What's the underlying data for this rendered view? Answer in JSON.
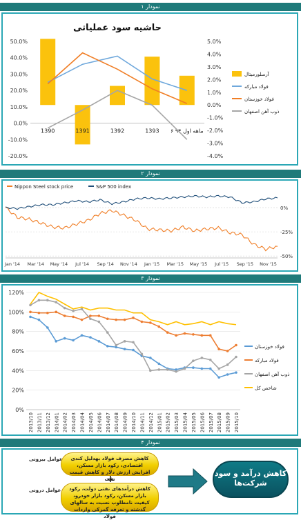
{
  "headers": [
    "نمودار ۱",
    "نمودار ۲",
    "نمودار ۳",
    "نمودار ۴"
  ],
  "chart_data": [
    {
      "type": "bar",
      "title": "حاشیه سود عملیاتی",
      "categories": [
        "1390",
        "1391",
        "1392",
        "1393",
        "۶ ماهه اول ۹۴"
      ],
      "left_axis_ticks": [
        "50.0%",
        "40.0%",
        "30.0%",
        "20.0%",
        "10.0%",
        "0.0%",
        "-10.0%",
        "-20.0%"
      ],
      "right_axis_ticks": [
        "5.0%",
        "4.0%",
        "3.0%",
        "2.0%",
        "1.0%",
        "0.0%",
        "-1.0%",
        "-2.0%",
        "-3.0%",
        "-4.0%"
      ],
      "ylim_left": [
        -20,
        50
      ],
      "ylim_right": [
        -4,
        5
      ],
      "colors": {
        "bar": "#fbc20d",
        "fooladMobarakeh": "#6fa8dc",
        "khuzestan": "#f07e26",
        "esfahan": "#a6a6a6"
      },
      "series": [
        {
          "name": "آرسلورمیتال",
          "kind": "bar",
          "axis": "right",
          "values": [
            5.2,
            -3.1,
            1.5,
            3.8,
            2.3
          ]
        },
        {
          "name": "فولاد مبارکه",
          "kind": "line",
          "axis": "left",
          "values": [
            25,
            36,
            41,
            27,
            20
          ]
        },
        {
          "name": "فولاد خوزستان",
          "kind": "line",
          "axis": "left",
          "values": [
            24,
            43,
            33,
            21,
            12
          ]
        },
        {
          "name": "ذوب آهن اصفهان",
          "kind": "line",
          "axis": "left",
          "values": [
            -3,
            8,
            20,
            11,
            -10
          ]
        }
      ]
    },
    {
      "type": "line",
      "legend": [
        "Nippon Steel stock price",
        "S&P 500 index"
      ],
      "x_ticks": [
        "Jan '14",
        "Mar '14",
        "May '14",
        "Jul '14",
        "Sep '14",
        "Nov '14",
        "Jan '15",
        "Mar '15",
        "May '15",
        "Jul '15",
        "Sep '15",
        "Nov '15"
      ],
      "y_ticks_right": [
        "0%",
        "-25%",
        "-50%"
      ],
      "ylim": [
        -52,
        15
      ],
      "colors": {
        "nippon": "#f07e26",
        "sp500": "#1f4e79"
      },
      "series": [
        {
          "name": "Nippon Steel stock price",
          "x": [
            0,
            1,
            2,
            3,
            4,
            5,
            6,
            7,
            8,
            9,
            10,
            11,
            12,
            13,
            14,
            15,
            16,
            17,
            18,
            19,
            20,
            21,
            22,
            23
          ],
          "values": [
            0,
            -10,
            -12,
            -16,
            -20,
            -21,
            -17,
            -13,
            -6,
            -3,
            -8,
            -13,
            -22,
            -23,
            -24,
            -20,
            -24,
            -22,
            -21,
            -26,
            -28,
            -38,
            -43,
            -40
          ]
        },
        {
          "name": "S&P 500 index",
          "x": [
            0,
            1,
            2,
            3,
            4,
            5,
            6,
            7,
            8,
            9,
            10,
            11,
            12,
            13,
            14,
            15,
            16,
            17,
            18,
            19,
            20,
            21,
            22,
            23
          ],
          "values": [
            0,
            -1,
            1,
            3,
            3,
            5,
            7,
            6,
            8,
            4,
            6,
            9,
            10,
            9,
            10,
            11,
            12,
            11,
            12,
            11,
            5,
            6,
            9,
            10
          ]
        }
      ]
    },
    {
      "type": "line",
      "y_ticks": [
        "120%",
        "100%",
        "80%",
        "60%",
        "40%",
        "20%",
        "0%"
      ],
      "ylim": [
        0,
        120
      ],
      "categories": [
        "2013/10",
        "2013/11",
        "2013/12",
        "2014/01",
        "2014/02",
        "2014/03",
        "2014/04",
        "2014/05",
        "2014/06",
        "2014/07",
        "2014/08",
        "2014/09",
        "2014/10",
        "2014/11",
        "2014/12",
        "2015/01",
        "2015/02",
        "2015/03",
        "2015/04",
        "2015/05",
        "2015/06",
        "2015/07",
        "2015/08",
        "2015/09",
        "2015/10"
      ],
      "colors": {
        "khuzestan": "#5b9bd5",
        "mobarakeh": "#ed7d31",
        "esfahan": "#a5a5a5",
        "index": "#ffc000"
      },
      "series": [
        {
          "name": "فولاد خوزستان",
          "values": [
            95,
            92,
            84,
            70,
            73,
            71,
            76,
            74,
            70,
            65,
            64,
            62,
            61,
            55,
            53,
            47,
            42,
            41,
            43,
            43,
            42,
            42,
            33,
            36,
            38
          ]
        },
        {
          "name": "فولاد مبارکه",
          "values": [
            100,
            99,
            99,
            100,
            96,
            95,
            92,
            96,
            96,
            93,
            92,
            92,
            94,
            90,
            89,
            85,
            79,
            76,
            78,
            77,
            76,
            76,
            62,
            60,
            66
          ]
        },
        {
          "name": "ذوب آهن اصفهان",
          "values": [
            107,
            112,
            112,
            110,
            104,
            101,
            103,
            93,
            90,
            79,
            66,
            70,
            69,
            57,
            40,
            41,
            41,
            39,
            42,
            50,
            53,
            51,
            42,
            46,
            54
          ]
        },
        {
          "name": "شاخص کل",
          "values": [
            108,
            120,
            116,
            113,
            108,
            103,
            105,
            102,
            104,
            104,
            102,
            102,
            99,
            99,
            92,
            90,
            87,
            90,
            87,
            88,
            90,
            87,
            90,
            88,
            87
          ]
        }
      ]
    }
  ],
  "diagram": {
    "external_label": "عوامل بیرونی",
    "internal_label": "عوامل درونی",
    "external_text": "کاهش مصرف فولاد بهدلیل کندی اقتصادی، رکود بازار مسکن، افزایش ارزش دلار و کاهش قیمت نفت",
    "internal_text": "کاهش درآمدهای نفتی دولت، رکود بازار مسکن، رکود بازار خودرو، کیفیت نامطلوب نسبت به سالهای گذشته و تعرفه گمرکی واردات فولاد",
    "plus": "+",
    "outcome": "کاهش درآمد و سود شرکت‌ها"
  }
}
